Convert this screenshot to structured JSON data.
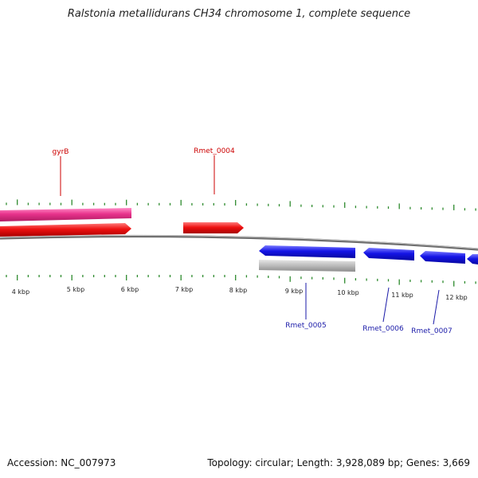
{
  "title": "Ralstonia metallidurans CH34 chromosome 1, complete sequence",
  "scale": {
    "unit_label": "kbp",
    "tick_labels": [
      "4 kbp",
      "5 kbp",
      "6 kbp",
      "7 kbp",
      "8 kbp",
      "9 kbp",
      "10 kbp",
      "11 kbp",
      "12 kbp"
    ]
  },
  "genes": [
    {
      "id": "gyrB-track-top",
      "name": "gyrB",
      "strand": "forward",
      "track": "outer",
      "color": "#e8338c",
      "labeled": true,
      "label_color": "#cc0000"
    },
    {
      "id": "gyrB-track-inner",
      "name": "",
      "strand": "forward",
      "track": "inner",
      "color": "#ee1111",
      "labeled": false
    },
    {
      "id": "Rmet_0004",
      "name": "Rmet_0004",
      "strand": "forward",
      "track": "inner",
      "color": "#ee1111",
      "labeled": true,
      "label_color": "#cc0000"
    },
    {
      "id": "Rmet_0005",
      "name": "Rmet_0005",
      "strand": "reverse",
      "track": "inner",
      "color": "#1414e6",
      "labeled": true,
      "label_color": "#1a1aa8"
    },
    {
      "id": "Rmet_0005-outer",
      "name": "",
      "strand": "reverse",
      "track": "outer",
      "color": "#bbbbbb",
      "labeled": false
    },
    {
      "id": "Rmet_0006",
      "name": "Rmet_0006",
      "strand": "reverse",
      "track": "inner",
      "color": "#1414e6",
      "labeled": true,
      "label_color": "#1a1aa8"
    },
    {
      "id": "Rmet_0007",
      "name": "Rmet_0007",
      "strand": "reverse",
      "track": "inner",
      "color": "#1414e6",
      "labeled": true,
      "label_color": "#1a1aa8"
    },
    {
      "id": "Rmet_0008",
      "name": "",
      "strand": "reverse",
      "track": "inner",
      "color": "#1414e6",
      "labeled": false
    }
  ],
  "colors": {
    "backbone": "#8a8a8a",
    "ticks": "#2d8a2d",
    "forward_label": "#cc0000",
    "reverse_label": "#1a1aa8"
  },
  "footer": {
    "accession": "Accession: NC_007973",
    "summary": "Topology: circular; Length: 3,928,089 bp; Genes: 3,669"
  }
}
